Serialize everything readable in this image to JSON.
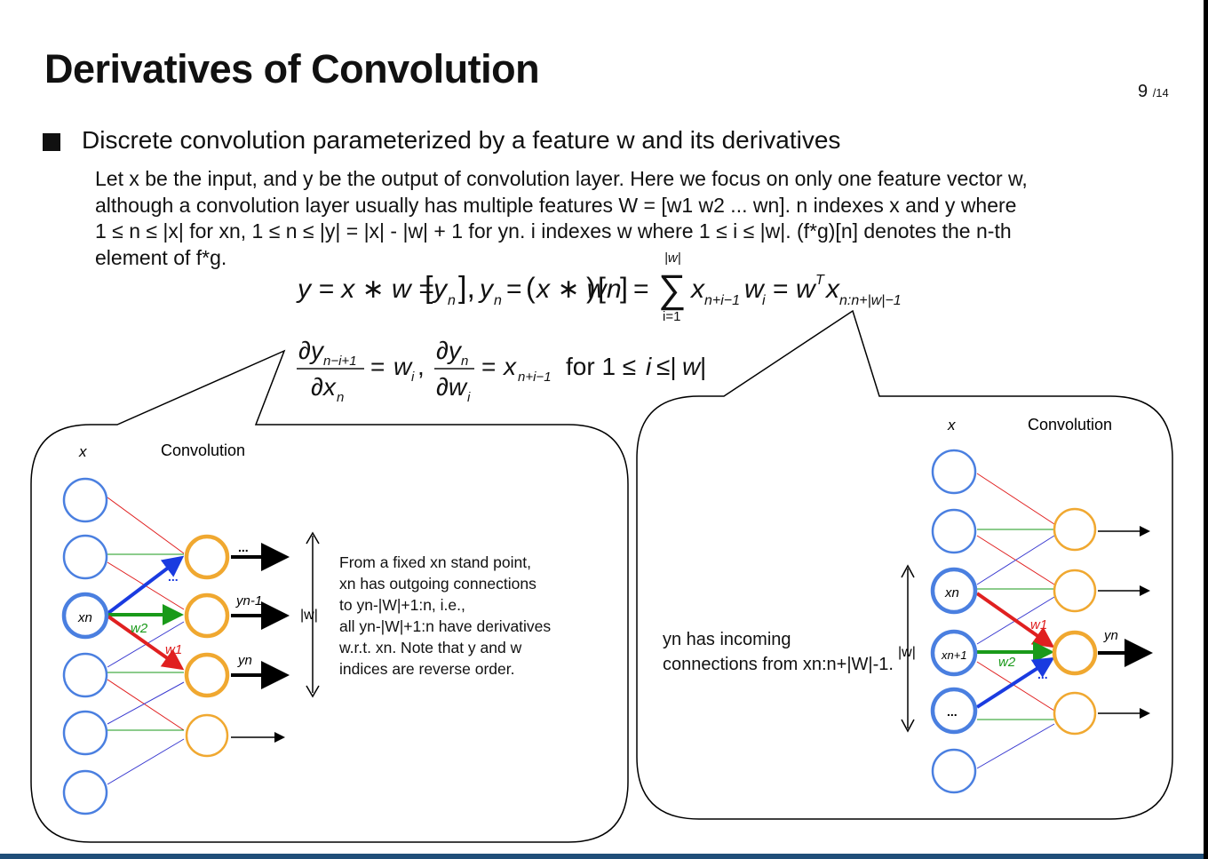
{
  "slide": {
    "title": "Derivatives of Convolution",
    "page_number": "9",
    "page_total": "/14",
    "bullet": "Discrete convolution parameterized by a feature w and its derivatives",
    "paragraph_lines": [
      "Let x be the input, and y be the output of convolution layer. Here we focus on only one feature vector w,",
      "although a convolution layer usually has multiple features W = [w1 w2 ... wn]. n indexes x and y where",
      "1 ≤ n ≤ |x| for xn, 1 ≤ n ≤ |y| = |x| - |w| + 1 for yn. i indexes w where 1 ≤ i ≤ |w|. (f*g)[n] denotes the n-th",
      "element of f*g."
    ]
  },
  "equations": {
    "eq1": "y = x * w = [yn], yn = (x * w)[n] = Σ_{i=1}^{|w|} x_{n+i−1} w_i = w^T x_{n:n+|w|−1}",
    "eq2": "∂y_{n−i+1}/∂x_n = w_i, ∂y_n/∂w_i = x_{n+i−1} for 1 ≤ i ≤ |w|"
  },
  "left_diagram": {
    "x_label": "x",
    "conv_label": "Convolution",
    "xn_label": "xn",
    "w1_label": "w1",
    "w2_label": "w2",
    "dots": "...",
    "yn1_label": "yn-1",
    "yn_label": "yn",
    "w_abs_label": "|w|",
    "note_lines": [
      "From a fixed xn stand point,",
      "xn has outgoing connections",
      "to yn-|W|+1:n, i.e.,",
      "all yn-|W|+1:n have derivatives",
      "w.r.t. xn. Note that y and w",
      "indices are reverse order."
    ]
  },
  "right_diagram": {
    "x_label": "x",
    "conv_label": "Convolution",
    "xn_label": "xn",
    "xn1_label": "xn+1",
    "dots": "...",
    "w1_label": "w1",
    "w2_label": "w2",
    "yn_label": "yn",
    "w_abs_label": "|w|",
    "note_lines": [
      "yn has incoming",
      "connections from xn:n+|W|-1."
    ]
  },
  "colors": {
    "input_node": "#4a7fe0",
    "conv_node": "#f0a830",
    "w1": "#e02020",
    "w2": "#1a9a1a",
    "blue_arrow": "#1a3be0",
    "bottom_bar": "#1f4e79"
  }
}
